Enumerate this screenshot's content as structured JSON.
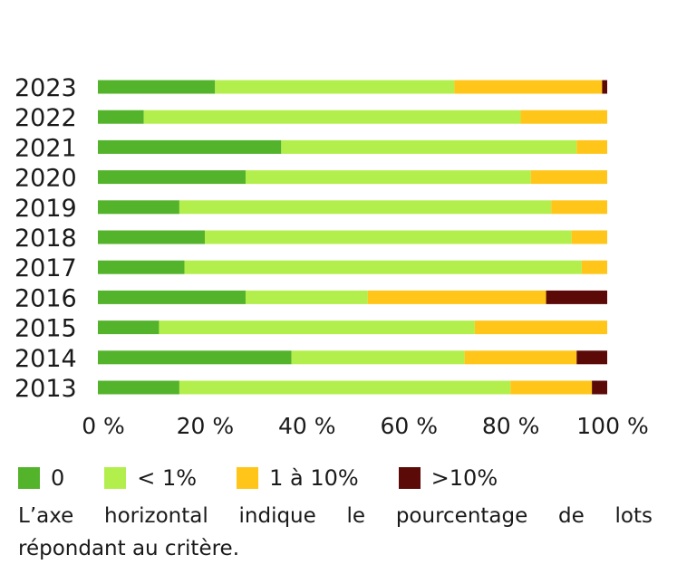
{
  "chart_data": {
    "type": "bar",
    "orientation": "horizontal",
    "stacked": true,
    "categories": [
      "2023",
      "2022",
      "2021",
      "2020",
      "2019",
      "2018",
      "2017",
      "2016",
      "2015",
      "2014",
      "2013"
    ],
    "series": [
      {
        "name": "0",
        "color": "#53b32b",
        "values": [
          23,
          9,
          36,
          29,
          16,
          21,
          17,
          29,
          12,
          38,
          16
        ]
      },
      {
        "name": "< 1%",
        "color": "#b3ef4c",
        "values": [
          47,
          74,
          58,
          56,
          73,
          72,
          78,
          24,
          62,
          34,
          65
        ]
      },
      {
        "name": "1 à 10%",
        "color": "#ffc619",
        "values": [
          29,
          17,
          6,
          15,
          11,
          7,
          5,
          35,
          26,
          22,
          16
        ]
      },
      {
        "name": ">10%",
        "color": "#5c0a08",
        "values": [
          1,
          0,
          0,
          0,
          0,
          0,
          0,
          12,
          0,
          6,
          3
        ]
      }
    ],
    "xlim": [
      0,
      100
    ],
    "xticks": [
      "0 %",
      "20 %",
      "40 %",
      "60 %",
      "80 %",
      "100 %"
    ],
    "grid": false,
    "legend": "bottom"
  },
  "legend": {
    "items": [
      {
        "label": "0",
        "color": "#53b32b"
      },
      {
        "label": "< 1%",
        "color": "#b3ef4c"
      },
      {
        "label": "1 à 10%",
        "color": "#ffc619"
      },
      {
        "label": ">10%",
        "color": "#5c0a08"
      }
    ]
  },
  "caption": {
    "line1": "L’axe horizontal indique le pourcentage de lots",
    "line2": "répondant au critère."
  }
}
